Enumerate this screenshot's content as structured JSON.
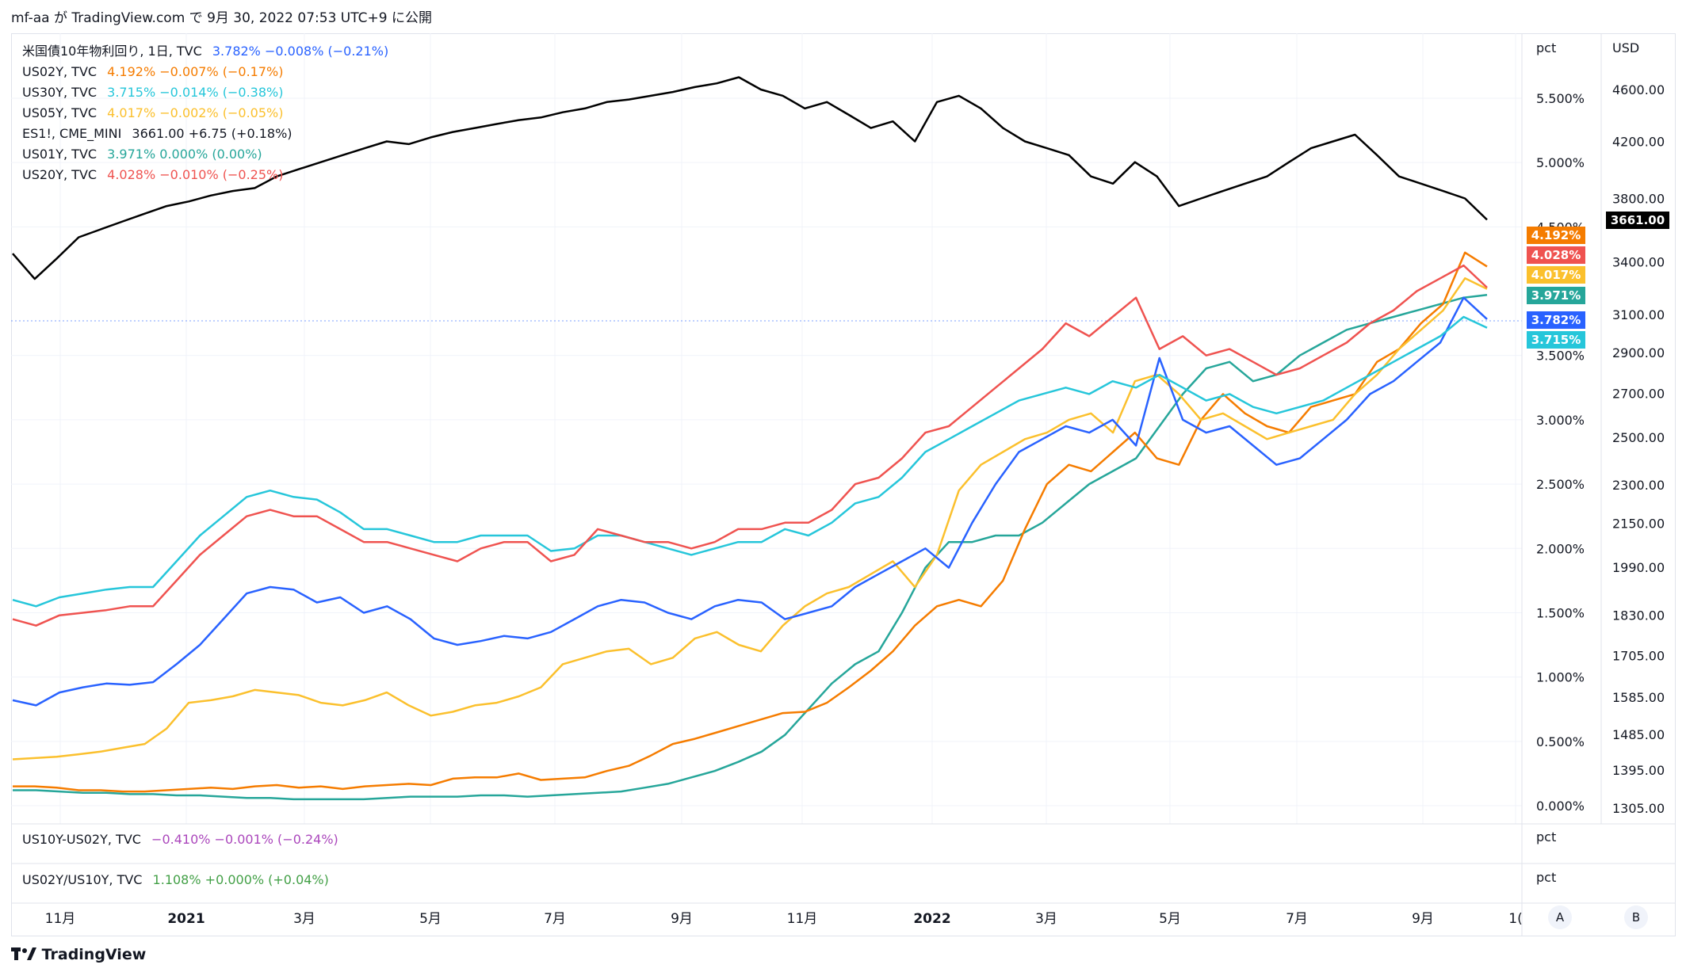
{
  "header": {
    "text": "mf-aa が TradingView.com で 9月 30, 2022 07:53 UTC+9 に公開"
  },
  "legend": [
    {
      "name": "米国債10年物利回り, 1日, TVC",
      "value": "3.782%",
      "change": "−0.008% (−0.21%)",
      "color": "#2962ff"
    },
    {
      "name": "US02Y, TVC",
      "value": "4.192%",
      "change": "−0.007% (−0.17%)",
      "color": "#f57c00"
    },
    {
      "name": "US30Y, TVC",
      "value": "3.715%",
      "change": "−0.014% (−0.38%)",
      "color": "#26c6da"
    },
    {
      "name": "US05Y, TVC",
      "value": "4.017%",
      "change": "−0.002% (−0.05%)",
      "color": "#fbc02d"
    },
    {
      "name": "ES1!, CME_MINI",
      "value": "3661.00",
      "change": "+6.75 (+0.18%)",
      "color": "#131722"
    },
    {
      "name": "US01Y, TVC",
      "value": "3.971%",
      "change": "0.000% (0.00%)",
      "color": "#26a69a"
    },
    {
      "name": "US20Y, TVC",
      "value": "4.028%",
      "change": "−0.010% (−0.25%)",
      "color": "#ef5350"
    }
  ],
  "sub_panes": [
    {
      "name": "US10Y-US02Y, TVC",
      "value": "−0.410%",
      "change": "−0.001% (−0.24%)",
      "color": "#ab47bc",
      "unit": "pct"
    },
    {
      "name": "US02Y/US10Y, TVC",
      "value": "1.108%",
      "change": "+0.000% (+0.04%)",
      "color": "#43a047",
      "unit": "pct"
    }
  ],
  "price_badges": [
    {
      "text": "4.192%",
      "color": "#f57c00"
    },
    {
      "text": "4.028%",
      "color": "#ef5350"
    },
    {
      "text": "4.017%",
      "color": "#fbc02d"
    },
    {
      "text": "3.971%",
      "color": "#26a69a"
    },
    {
      "text": "3.782%",
      "color": "#2962ff"
    },
    {
      "text": "3.715%",
      "color": "#26c6da"
    }
  ],
  "es_badge": {
    "text": "3661.00",
    "color": "#000000"
  },
  "footer": {
    "brand": "TradingView",
    "logo": "tradingview-logo-icon"
  },
  "buttons": {
    "auto": "A",
    "bars": "B"
  },
  "chart_data": {
    "type": "line",
    "x_ticks": [
      "11月",
      "2021",
      "3月",
      "5月",
      "7月",
      "9月",
      "11月",
      "2022",
      "3月",
      "5月",
      "7月",
      "9月",
      "1("
    ],
    "pct_axis": {
      "unit": "pct",
      "ticks": [
        "5.500%",
        "5.000%",
        "4.500%",
        "3.500%",
        "3.000%",
        "2.500%",
        "2.000%",
        "1.500%",
        "1.000%",
        "0.500%",
        "0.000%"
      ],
      "range": [
        0,
        5.75
      ]
    },
    "usd_axis": {
      "unit": "USD",
      "ticks": [
        "4600.00",
        "4200.00",
        "3800.00",
        "3400.00",
        "3100.00",
        "2900.00",
        "2700.00",
        "2500.00",
        "2300.00",
        "2150.00",
        "1990.00",
        "1830.00",
        "1705.00",
        "1585.00",
        "1485.00",
        "1395.00",
        "1305.00"
      ],
      "scale": "log",
      "range": [
        1305,
        4700
      ]
    },
    "series": [
      {
        "name": "ES1!",
        "axis": "usd",
        "color": "#000000",
        "values": [
          3450,
          3300,
          3420,
          3550,
          3600,
          3650,
          3700,
          3750,
          3780,
          3820,
          3850,
          3870,
          3950,
          4000,
          4050,
          4100,
          4150,
          4200,
          4180,
          4230,
          4270,
          4300,
          4330,
          4360,
          4380,
          4420,
          4450,
          4500,
          4520,
          4550,
          4580,
          4620,
          4650,
          4700,
          4600,
          4550,
          4450,
          4500,
          4400,
          4300,
          4350,
          4200,
          4500,
          4550,
          4450,
          4300,
          4200,
          4150,
          4100,
          3950,
          3900,
          4050,
          3950,
          3750,
          3800,
          3850,
          3900,
          3950,
          4050,
          4150,
          4200,
          4250,
          4100,
          3950,
          3900,
          3850,
          3800,
          3661
        ]
      },
      {
        "name": "US02Y",
        "axis": "pct",
        "color": "#f57c00",
        "values": [
          0.15,
          0.15,
          0.14,
          0.12,
          0.12,
          0.11,
          0.11,
          0.12,
          0.13,
          0.14,
          0.13,
          0.15,
          0.16,
          0.14,
          0.15,
          0.13,
          0.15,
          0.16,
          0.17,
          0.16,
          0.21,
          0.22,
          0.22,
          0.25,
          0.2,
          0.21,
          0.22,
          0.27,
          0.31,
          0.39,
          0.48,
          0.52,
          0.57,
          0.62,
          0.67,
          0.72,
          0.73,
          0.8,
          0.92,
          1.05,
          1.2,
          1.4,
          1.55,
          1.6,
          1.55,
          1.75,
          2.15,
          2.5,
          2.65,
          2.6,
          2.75,
          2.9,
          2.7,
          2.65,
          3.0,
          3.2,
          3.05,
          2.95,
          2.9,
          3.1,
          3.15,
          3.2,
          3.45,
          3.55,
          3.75,
          3.9,
          4.3,
          4.192
        ]
      },
      {
        "name": "US05Y",
        "axis": "pct",
        "color": "#fbc02d",
        "values": [
          0.36,
          0.37,
          0.38,
          0.4,
          0.42,
          0.45,
          0.48,
          0.6,
          0.8,
          0.82,
          0.85,
          0.9,
          0.88,
          0.86,
          0.8,
          0.78,
          0.82,
          0.88,
          0.78,
          0.7,
          0.73,
          0.78,
          0.8,
          0.85,
          0.92,
          1.1,
          1.15,
          1.2,
          1.22,
          1.1,
          1.15,
          1.3,
          1.35,
          1.25,
          1.2,
          1.4,
          1.55,
          1.65,
          1.7,
          1.8,
          1.9,
          1.7,
          1.95,
          2.45,
          2.65,
          2.75,
          2.85,
          2.9,
          3.0,
          3.05,
          2.9,
          3.3,
          3.35,
          3.2,
          3.0,
          3.05,
          2.95,
          2.85,
          2.9,
          2.95,
          3.0,
          3.2,
          3.35,
          3.55,
          3.7,
          3.85,
          4.1,
          4.017
        ]
      },
      {
        "name": "US01Y",
        "axis": "pct",
        "color": "#26a69a",
        "values": [
          0.12,
          0.12,
          0.11,
          0.1,
          0.1,
          0.09,
          0.09,
          0.08,
          0.08,
          0.07,
          0.06,
          0.06,
          0.05,
          0.05,
          0.05,
          0.05,
          0.06,
          0.07,
          0.07,
          0.07,
          0.08,
          0.08,
          0.07,
          0.08,
          0.09,
          0.1,
          0.11,
          0.14,
          0.17,
          0.22,
          0.27,
          0.34,
          0.42,
          0.55,
          0.75,
          0.95,
          1.1,
          1.2,
          1.5,
          1.85,
          2.05,
          2.05,
          2.1,
          2.1,
          2.2,
          2.35,
          2.5,
          2.6,
          2.7,
          2.95,
          3.2,
          3.4,
          3.45,
          3.3,
          3.35,
          3.5,
          3.6,
          3.7,
          3.75,
          3.8,
          3.85,
          3.9,
          3.95,
          3.971
        ]
      },
      {
        "name": "US10Y",
        "axis": "pct",
        "color": "#2962ff",
        "values": [
          0.82,
          0.78,
          0.88,
          0.92,
          0.95,
          0.94,
          0.96,
          1.1,
          1.25,
          1.45,
          1.65,
          1.7,
          1.68,
          1.58,
          1.62,
          1.5,
          1.55,
          1.45,
          1.3,
          1.25,
          1.28,
          1.32,
          1.3,
          1.35,
          1.45,
          1.55,
          1.6,
          1.58,
          1.5,
          1.45,
          1.55,
          1.6,
          1.58,
          1.45,
          1.5,
          1.55,
          1.7,
          1.8,
          1.9,
          2.0,
          1.85,
          2.2,
          2.5,
          2.75,
          2.85,
          2.95,
          2.9,
          3.0,
          2.8,
          3.48,
          3.0,
          2.9,
          2.95,
          2.8,
          2.65,
          2.7,
          2.85,
          3.0,
          3.2,
          3.3,
          3.45,
          3.6,
          3.95,
          3.782
        ]
      },
      {
        "name": "US20Y",
        "axis": "pct",
        "color": "#ef5350",
        "values": [
          1.45,
          1.4,
          1.48,
          1.5,
          1.52,
          1.55,
          1.55,
          1.75,
          1.95,
          2.1,
          2.25,
          2.3,
          2.25,
          2.25,
          2.15,
          2.05,
          2.05,
          2.0,
          1.95,
          1.9,
          2.0,
          2.05,
          2.05,
          1.9,
          1.95,
          2.15,
          2.1,
          2.05,
          2.05,
          2.0,
          2.05,
          2.15,
          2.15,
          2.2,
          2.2,
          2.3,
          2.5,
          2.55,
          2.7,
          2.9,
          2.95,
          3.1,
          3.25,
          3.4,
          3.55,
          3.75,
          3.65,
          3.8,
          3.95,
          3.55,
          3.65,
          3.5,
          3.55,
          3.45,
          3.35,
          3.4,
          3.5,
          3.6,
          3.75,
          3.85,
          4.0,
          4.1,
          4.2,
          4.028
        ]
      },
      {
        "name": "US30Y",
        "axis": "pct",
        "color": "#26c6da",
        "values": [
          1.6,
          1.55,
          1.62,
          1.65,
          1.68,
          1.7,
          1.7,
          1.9,
          2.1,
          2.25,
          2.4,
          2.45,
          2.4,
          2.38,
          2.28,
          2.15,
          2.15,
          2.1,
          2.05,
          2.05,
          2.1,
          2.1,
          2.1,
          1.98,
          2.0,
          2.1,
          2.1,
          2.05,
          2.0,
          1.95,
          2.0,
          2.05,
          2.05,
          2.15,
          2.1,
          2.2,
          2.35,
          2.4,
          2.55,
          2.75,
          2.85,
          2.95,
          3.05,
          3.15,
          3.2,
          3.25,
          3.2,
          3.3,
          3.25,
          3.35,
          3.25,
          3.15,
          3.2,
          3.1,
          3.05,
          3.1,
          3.15,
          3.25,
          3.35,
          3.45,
          3.55,
          3.65,
          3.8,
          3.715
        ]
      }
    ]
  }
}
